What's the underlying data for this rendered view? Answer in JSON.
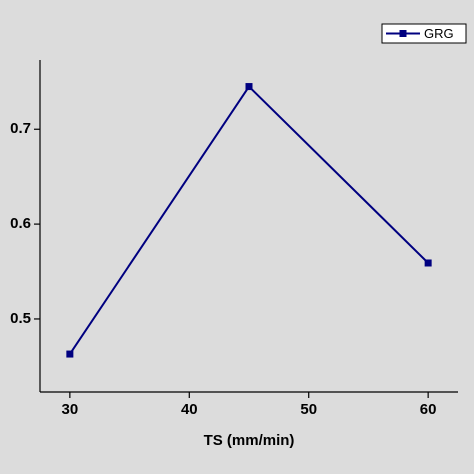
{
  "chart_data": {
    "type": "line",
    "x_label": "TS (mm/min)",
    "x": [
      30,
      45,
      60
    ],
    "series": [
      {
        "name": "GRG",
        "color": "#000080",
        "values": [
          0.463,
          0.745,
          0.559
        ]
      }
    ],
    "xlim": [
      27.5,
      62.5
    ],
    "xticks": [
      30,
      40,
      50,
      60
    ],
    "ylim": [
      0.423,
      0.773
    ],
    "yticks": [
      0.5,
      0.6,
      0.7
    ],
    "legend": "top-right"
  }
}
